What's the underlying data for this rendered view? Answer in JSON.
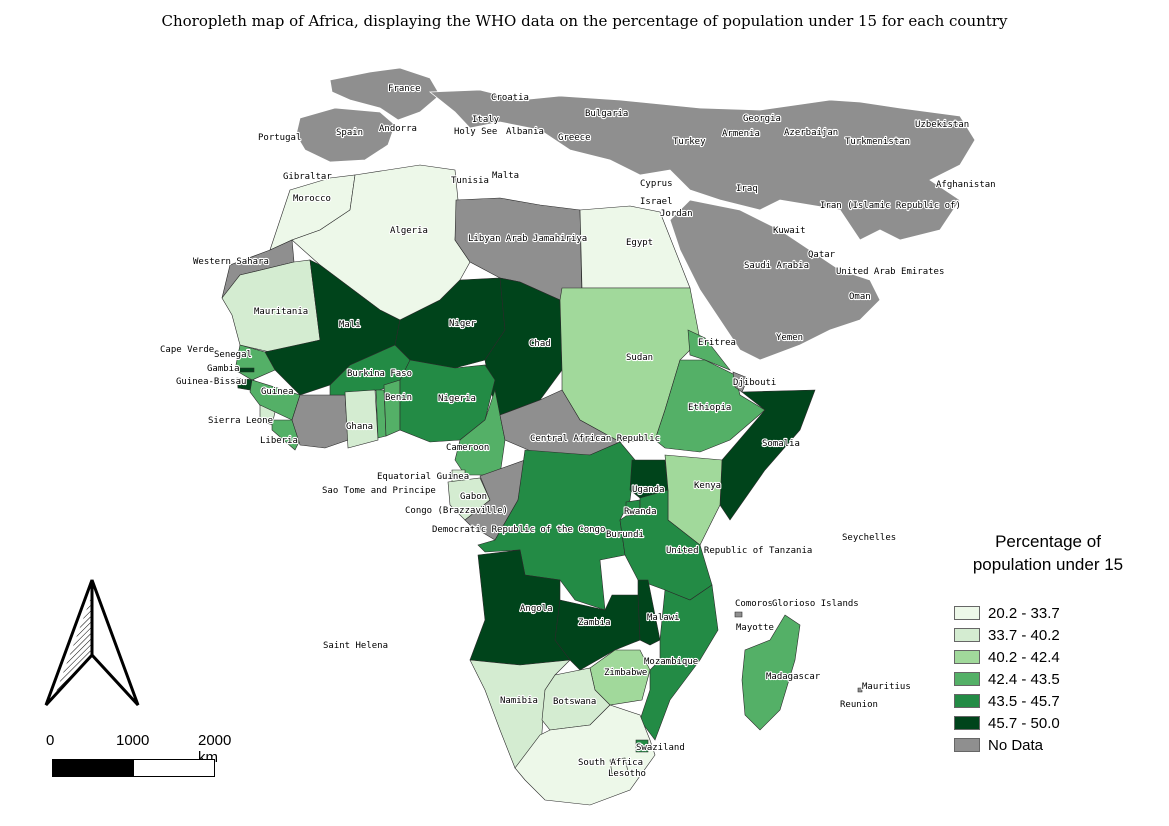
{
  "title": "Choropleth map of Africa, displaying the WHO data on the percentage of population under 15 for each country",
  "legend": {
    "title_line1": "Percentage of",
    "title_line2": "population under 15",
    "classes": [
      {
        "label": "20.2 - 33.7",
        "color": "#edf8e9"
      },
      {
        "label": "33.7 - 40.2",
        "color": "#d4ecd1"
      },
      {
        "label": "40.2 - 42.4",
        "color": "#a1d99b"
      },
      {
        "label": "42.4 - 43.5",
        "color": "#54b067"
      },
      {
        "label": "43.5 - 45.7",
        "color": "#238b45"
      },
      {
        "label": "45.7 - 50.0",
        "color": "#00441b"
      },
      {
        "label": "No Data",
        "color": "#8f8f8f"
      }
    ]
  },
  "scale_bar": {
    "labels": [
      "0",
      "1000",
      "2000 km"
    ]
  },
  "labels": {
    "europe_asia": [
      "France",
      "Croatia",
      "Bulgaria",
      "Georgia",
      "Uzbekistan",
      "Italy",
      "Portugal",
      "Spain",
      "Andorra",
      "Holy See",
      "Albania",
      "Greece",
      "Armenia",
      "Azerbaijan",
      "Turkey",
      "Turkmenistan",
      "Gibraltar",
      "Tunisia",
      "Malta",
      "Cyprus",
      "Iraq",
      "Afghanistan",
      "Israel",
      "Jordan",
      "Iran (Islamic Republic of)",
      "Kuwait",
      "Qatar",
      "Saudi Arabia",
      "United Arab Emirates",
      "Oman",
      "Yemen"
    ],
    "africa": [
      "Morocco",
      "Algeria",
      "Libyan Arab Jamahiriya",
      "Egypt",
      "Western Sahara",
      "Mauritania",
      "Mali",
      "Niger",
      "Chad",
      "Sudan",
      "Eritrea",
      "Cape Verde",
      "Senegal",
      "Gambia",
      "Guinea-Bissau",
      "Guinea",
      "Sierra Leone",
      "Liberia",
      "Burkina Faso",
      "Benin",
      "Nigeria",
      "Ghana",
      "Djibouti",
      "Ethiopia",
      "Somalia",
      "Cameroon",
      "Central African Republic",
      "Equatorial Guinea",
      "Sao Tome and Principe",
      "Gabon",
      "Congo (Brazzaville)",
      "Uganda",
      "Kenya",
      "Rwanda",
      "Democratic Republic of the Congo",
      "Burundi",
      "United Republic of Tanzania",
      "Seychelles",
      "Comoros",
      "Glorioso Islands",
      "Mayotte",
      "Angola",
      "Zambia",
      "Malawi",
      "Saint Helena",
      "Mozambique",
      "Zimbabwe",
      "Madagascar",
      "Mauritius",
      "Reunion",
      "Namibia",
      "Botswana",
      "Swaziland",
      "South Africa",
      "Lesotho"
    ]
  }
}
